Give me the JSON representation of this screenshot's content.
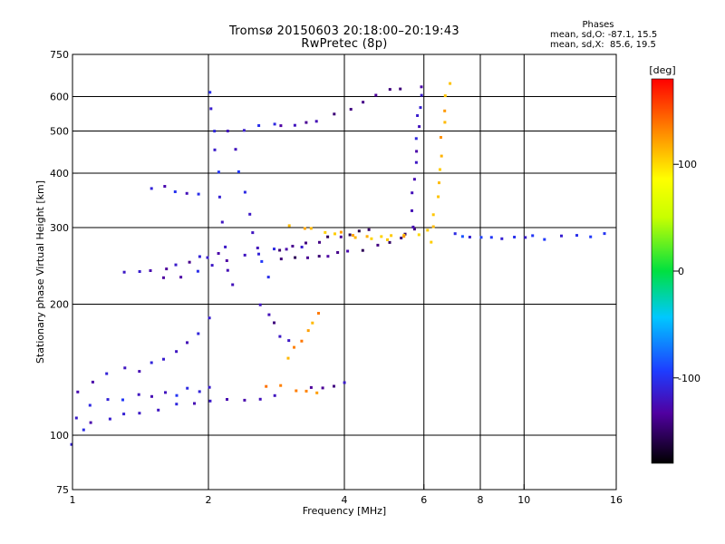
{
  "header": {
    "title_line1": "Tromsø 20150603 20:18:00–20:19:43",
    "title_line2": "RwPretec (8p)"
  },
  "stats": {
    "heading": "Phases",
    "line_o": "mean, sd,O: -87.1, 15.5",
    "line_x": "mean, sd,X:  85.6, 19.5"
  },
  "colorbar": {
    "unit": "[deg]",
    "ticks": [
      100,
      0,
      -100
    ],
    "range": [
      -180,
      180
    ]
  },
  "chart_data": {
    "type": "scatter",
    "title": "Tromsø 20150603 20:18:00–20:19:43",
    "subtitle": "RwPretec (8p)",
    "xlabel": "Frequency [MHz]",
    "ylabel": "Stationary phase Virtual Height [km]",
    "xscale": "log",
    "yscale": "log",
    "xlim": [
      1,
      16
    ],
    "ylim": [
      75,
      750
    ],
    "xticks": [
      1,
      2,
      4,
      6,
      8,
      10,
      16
    ],
    "xgrid": [
      2,
      4,
      6,
      8,
      10
    ],
    "yticks": [
      75,
      100,
      200,
      300,
      400,
      500,
      600,
      750
    ],
    "ygrid": [
      100,
      200,
      300,
      400,
      500,
      600
    ],
    "grid": true,
    "color_by": "phase [deg]",
    "traces": [
      {
        "phase": -115,
        "pts": [
          [
            1.0,
            96
          ],
          [
            1.05,
            102
          ],
          [
            1.1,
            106
          ],
          [
            1.2,
            110
          ],
          [
            1.3,
            112
          ],
          [
            1.4,
            113
          ],
          [
            1.55,
            115
          ],
          [
            1.7,
            117
          ],
          [
            1.85,
            118
          ],
          [
            2.0,
            119
          ],
          [
            2.2,
            120
          ],
          [
            2.4,
            121
          ],
          [
            2.6,
            122
          ],
          [
            2.8,
            123
          ]
        ]
      },
      {
        "phase": -110,
        "pts": [
          [
            1.02,
            110
          ],
          [
            1.1,
            118
          ],
          [
            1.2,
            122
          ],
          [
            1.3,
            120
          ],
          [
            1.4,
            124
          ],
          [
            1.5,
            122
          ],
          [
            1.6,
            126
          ],
          [
            1.7,
            124
          ],
          [
            1.8,
            128
          ],
          [
            1.9,
            126
          ],
          [
            2.0,
            130
          ]
        ]
      },
      {
        "phase": -120,
        "pts": [
          [
            1.02,
            125
          ],
          [
            1.1,
            133
          ],
          [
            1.2,
            138
          ],
          [
            1.3,
            142
          ],
          [
            1.4,
            140
          ],
          [
            1.5,
            146
          ],
          [
            1.6,
            150
          ],
          [
            1.7,
            155
          ],
          [
            1.8,
            162
          ],
          [
            1.9,
            172
          ],
          [
            2.0,
            185
          ]
        ]
      },
      {
        "phase": -125,
        "pts": [
          [
            1.3,
            235
          ],
          [
            1.4,
            238
          ],
          [
            1.5,
            240
          ],
          [
            1.6,
            243
          ],
          [
            1.7,
            248
          ],
          [
            1.8,
            252
          ],
          [
            1.9,
            256
          ],
          [
            2.0,
            258
          ],
          [
            2.1,
            262
          ]
        ]
      },
      {
        "phase": -118,
        "pts": [
          [
            1.6,
            228
          ],
          [
            1.75,
            232
          ],
          [
            1.9,
            238
          ],
          [
            2.05,
            246
          ],
          [
            2.2,
            252
          ],
          [
            2.4,
            258
          ],
          [
            2.6,
            262
          ],
          [
            2.8,
            266
          ],
          [
            3.0,
            268
          ],
          [
            3.2,
            270
          ]
        ]
      },
      {
        "phase": -140,
        "pts": [
          [
            2.9,
            253
          ],
          [
            3.1,
            255
          ],
          [
            3.3,
            256
          ],
          [
            3.5,
            258
          ],
          [
            3.7,
            260
          ],
          [
            3.9,
            262
          ],
          [
            4.1,
            265
          ],
          [
            4.4,
            268
          ],
          [
            4.7,
            272
          ],
          [
            5.0,
            276
          ],
          [
            5.3,
            282
          ],
          [
            5.5,
            290
          ],
          [
            5.7,
            300
          ]
        ]
      },
      {
        "phase": -145,
        "pts": [
          [
            2.9,
            268
          ],
          [
            3.1,
            272
          ],
          [
            3.3,
            276
          ],
          [
            3.5,
            280
          ],
          [
            3.7,
            283
          ],
          [
            3.9,
            286
          ],
          [
            4.1,
            290
          ],
          [
            4.3,
            293
          ],
          [
            4.5,
            297
          ]
        ]
      },
      {
        "phase": 110,
        "pts": [
          [
            3.0,
            305
          ],
          [
            3.3,
            298
          ],
          [
            3.6,
            294
          ],
          [
            3.9,
            290
          ],
          [
            4.2,
            288
          ],
          [
            4.5,
            287
          ],
          [
            4.8,
            286
          ],
          [
            5.1,
            287
          ],
          [
            5.4,
            290
          ]
        ]
      },
      {
        "phase": 115,
        "pts": [
          [
            3.4,
            300
          ],
          [
            3.8,
            292
          ],
          [
            4.2,
            286
          ],
          [
            4.6,
            282
          ],
          [
            5.0,
            281
          ],
          [
            5.4,
            284
          ],
          [
            5.8,
            290
          ],
          [
            6.1,
            298
          ]
        ]
      },
      {
        "phase": -120,
        "pts": [
          [
            5.65,
            300
          ],
          [
            5.68,
            330
          ],
          [
            5.7,
            360
          ],
          [
            5.72,
            390
          ],
          [
            5.75,
            420
          ],
          [
            5.78,
            450
          ],
          [
            5.8,
            480
          ],
          [
            5.82,
            510
          ],
          [
            5.84,
            540
          ],
          [
            5.86,
            570
          ],
          [
            5.88,
            600
          ],
          [
            5.9,
            630
          ]
        ]
      },
      {
        "phase": 115,
        "pts": [
          [
            6.2,
            280
          ],
          [
            6.3,
            300
          ],
          [
            6.35,
            320
          ],
          [
            6.4,
            350
          ],
          [
            6.45,
            380
          ],
          [
            6.5,
            410
          ],
          [
            6.55,
            440
          ],
          [
            6.6,
            480
          ],
          [
            6.65,
            520
          ],
          [
            6.7,
            560
          ],
          [
            6.75,
            600
          ],
          [
            6.8,
            640
          ]
        ]
      },
      {
        "phase": -135,
        "pts": [
          [
            2.9,
            510
          ],
          [
            3.1,
            515
          ],
          [
            3.3,
            520
          ],
          [
            3.5,
            530
          ],
          [
            3.8,
            545
          ],
          [
            4.1,
            565
          ],
          [
            4.4,
            585
          ],
          [
            4.7,
            605
          ],
          [
            5.0,
            620
          ],
          [
            5.3,
            630
          ]
        ]
      },
      {
        "phase": -110,
        "pts": [
          [
            2.2,
            500
          ],
          [
            2.4,
            505
          ],
          [
            2.6,
            510
          ],
          [
            2.8,
            515
          ]
        ]
      },
      {
        "phase": -112,
        "pts": [
          [
            2.0,
            610
          ],
          [
            2.03,
            560
          ],
          [
            2.06,
            500
          ],
          [
            2.08,
            450
          ],
          [
            2.1,
            400
          ],
          [
            2.12,
            350
          ],
          [
            2.15,
            310
          ],
          [
            2.18,
            270
          ],
          [
            2.2,
            240
          ],
          [
            2.25,
            220
          ]
        ]
      },
      {
        "phase": -108,
        "pts": [
          [
            2.3,
            450
          ],
          [
            2.35,
            400
          ],
          [
            2.4,
            360
          ],
          [
            2.45,
            320
          ],
          [
            2.5,
            290
          ],
          [
            2.55,
            270
          ],
          [
            2.6,
            250
          ],
          [
            2.7,
            230
          ]
        ]
      },
      {
        "phase": -130,
        "pts": [
          [
            2.6,
            200
          ],
          [
            2.7,
            190
          ],
          [
            2.8,
            180
          ],
          [
            2.9,
            170
          ],
          [
            3.0,
            165
          ]
        ]
      },
      {
        "phase": 125,
        "pts": [
          [
            3.0,
            150
          ],
          [
            3.1,
            158
          ],
          [
            3.2,
            166
          ],
          [
            3.3,
            174
          ],
          [
            3.4,
            182
          ],
          [
            3.5,
            190
          ]
        ]
      },
      {
        "phase": 130,
        "pts": [
          [
            2.7,
            130
          ],
          [
            2.9,
            129
          ],
          [
            3.1,
            127
          ],
          [
            3.3,
            126
          ],
          [
            3.5,
            125
          ]
        ]
      },
      {
        "phase": -128,
        "pts": [
          [
            3.4,
            128
          ],
          [
            3.6,
            129
          ],
          [
            3.8,
            130
          ],
          [
            4.0,
            131
          ]
        ]
      },
      {
        "phase": -100,
        "pts": [
          [
            7.0,
            290
          ],
          [
            7.3,
            288
          ],
          [
            7.6,
            287
          ],
          [
            8.0,
            286
          ],
          [
            8.5,
            285
          ],
          [
            9.0,
            285
          ],
          [
            9.5,
            284
          ],
          [
            10.0,
            285
          ],
          [
            10.5,
            285
          ],
          [
            11.0,
            284
          ],
          [
            12.0,
            285
          ],
          [
            13.0,
            286
          ],
          [
            14.0,
            287
          ],
          [
            15.0,
            288
          ]
        ]
      },
      {
        "phase": -115,
        "pts": [
          [
            1.5,
            370
          ],
          [
            1.6,
            375
          ],
          [
            1.7,
            365
          ],
          [
            1.8,
            360
          ],
          [
            1.9,
            355
          ]
        ]
      }
    ]
  }
}
